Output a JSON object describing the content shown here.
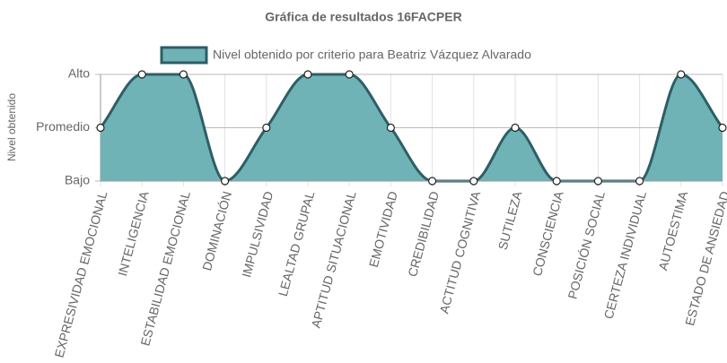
{
  "chart_data": {
    "type": "line",
    "title": "Gráfica de resultados 16FACPER",
    "y_label": "Nivel obtenido",
    "categories": [
      "EXPRESIVIDAD EMOCIONAL",
      "INTELIGENCIA",
      "ESTABILIDAD EMOCIONAL",
      "DOMINACIÓN",
      "IMPULSIVIDAD",
      "LEALTAD GRUPAL",
      "APTITUD SITUACIONAL",
      "EMOTIVIDAD",
      "CREDIBILIDAD",
      "ACTITUD COGNITIVA",
      "SUTILEZA",
      "CONSCIENCIA",
      "POSICIÓN SOCIAL",
      "CERTEZA INDIVIDUAL",
      "AUTOESTIMA",
      "ESTADO DE ANSIEDAD"
    ],
    "series": [
      {
        "name": "Nivel obtenido por criterio para Beatriz Vázquez Alvarado",
        "color": "#2e5e66",
        "fill": "#6fb3b7",
        "values": [
          2,
          3,
          3,
          1,
          2,
          3,
          3,
          2,
          1,
          1,
          2,
          1,
          1,
          1,
          3,
          2
        ]
      }
    ],
    "ylim": [
      1,
      3
    ],
    "yticks": [
      {
        "value": 1,
        "label": "Bajo"
      },
      {
        "value": 2,
        "label": "Promedio"
      },
      {
        "value": 3,
        "label": "Alto"
      }
    ],
    "grid": true,
    "legend": "top"
  }
}
